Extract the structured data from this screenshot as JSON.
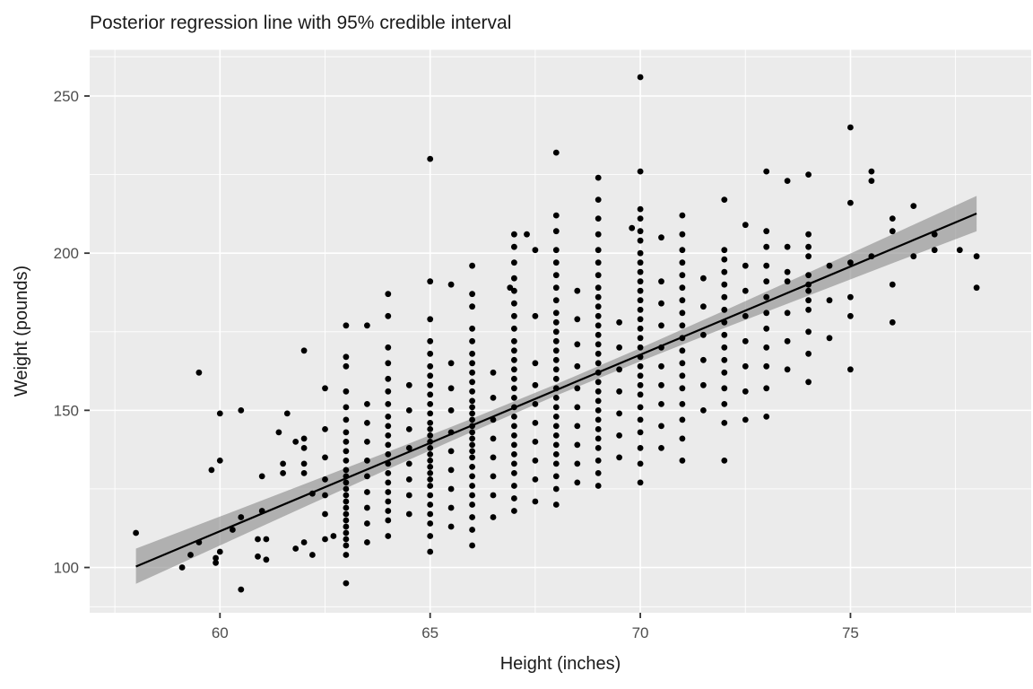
{
  "page": {
    "background": "#FFFFFF"
  },
  "chart_data": {
    "type": "scatter",
    "title": "Posterior regression line with 95% credible interval",
    "xlabel": "Height (inches)",
    "ylabel": "Weight (pounds)",
    "x_ticks": [
      60,
      65,
      70,
      75
    ],
    "y_ticks": [
      100,
      150,
      200,
      250
    ],
    "x_minor_gridlines": [
      57.5,
      62.5,
      67.5,
      72.5,
      77.5
    ],
    "y_minor_gridlines": [
      87.5,
      125,
      175,
      225,
      262.5
    ],
    "xlim": [
      56.9,
      79.3
    ],
    "ylim": [
      85.6,
      264.7
    ],
    "grid": true,
    "legend": "none",
    "colors": {
      "panel_background": "#EBEBEB",
      "gridline": "#FFFFFF",
      "point": "#000000",
      "regression_line": "#000000",
      "ribbon": "#8C8C8C",
      "tick_label": "#4D4D4D",
      "tick_mark": "#333333",
      "title": "#1a1a1a"
    },
    "regression_line": {
      "x": [
        58,
        78
      ],
      "y": [
        100.3,
        212.6
      ]
    },
    "credible_ribbon": [
      [
        58,
        94.8,
        106.0
      ],
      [
        60,
        107.0,
        116.2
      ],
      [
        62,
        119.2,
        126.5
      ],
      [
        64,
        131.3,
        136.8
      ],
      [
        66,
        143.2,
        147.4
      ],
      [
        68,
        154.7,
        158.3
      ],
      [
        70,
        165.6,
        169.8
      ],
      [
        72,
        176.2,
        181.7
      ],
      [
        74,
        186.5,
        193.8
      ],
      [
        76,
        196.8,
        206.0
      ],
      [
        78,
        207.0,
        218.2
      ]
    ],
    "points": [
      [
        58,
        111
      ],
      [
        59.1,
        100
      ],
      [
        59.3,
        104
      ],
      [
        59.5,
        108
      ],
      [
        59.5,
        162
      ],
      [
        59.8,
        131
      ],
      [
        59.9,
        103
      ],
      [
        59.9,
        101.5
      ],
      [
        60,
        105
      ],
      [
        60,
        134
      ],
      [
        60,
        149
      ],
      [
        60.3,
        112
      ],
      [
        60.5,
        93
      ],
      [
        60.5,
        116
      ],
      [
        60.5,
        150
      ],
      [
        60.9,
        109
      ],
      [
        60.9,
        103.5
      ],
      [
        61,
        129
      ],
      [
        61,
        118
      ],
      [
        61.1,
        109
      ],
      [
        61.1,
        102.5
      ],
      [
        61.4,
        143
      ],
      [
        61.5,
        133
      ],
      [
        61.5,
        130
      ],
      [
        61.6,
        149
      ],
      [
        61.8,
        140
      ],
      [
        61.8,
        106
      ],
      [
        62,
        141
      ],
      [
        62,
        138
      ],
      [
        62,
        133
      ],
      [
        62,
        130
      ],
      [
        62,
        108
      ],
      [
        62,
        169
      ],
      [
        62.2,
        123.5
      ],
      [
        62.2,
        104
      ],
      [
        62.5,
        123
      ],
      [
        62.5,
        109
      ],
      [
        62.7,
        110
      ],
      [
        62.5,
        117
      ],
      [
        62.5,
        128
      ],
      [
        62.5,
        135
      ],
      [
        62.5,
        144
      ],
      [
        62.5,
        157
      ],
      [
        63,
        95
      ],
      [
        63,
        104
      ],
      [
        63,
        107
      ],
      [
        63,
        109
      ],
      [
        63,
        111
      ],
      [
        63,
        113
      ],
      [
        63,
        115
      ],
      [
        63,
        117
      ],
      [
        63,
        119
      ],
      [
        63,
        121
      ],
      [
        63,
        123
      ],
      [
        63,
        125
      ],
      [
        63,
        127
      ],
      [
        63,
        129
      ],
      [
        63,
        131
      ],
      [
        63,
        134
      ],
      [
        63,
        137
      ],
      [
        63,
        140
      ],
      [
        63,
        143
      ],
      [
        63,
        147
      ],
      [
        63,
        151
      ],
      [
        63,
        156
      ],
      [
        63,
        164
      ],
      [
        63,
        167
      ],
      [
        63,
        177
      ],
      [
        63.5,
        108
      ],
      [
        63.5,
        114
      ],
      [
        63.5,
        119
      ],
      [
        63.5,
        124
      ],
      [
        63.5,
        129
      ],
      [
        63.5,
        134
      ],
      [
        63.5,
        140
      ],
      [
        63.5,
        146
      ],
      [
        63.5,
        152
      ],
      [
        63.5,
        177
      ],
      [
        64,
        110
      ],
      [
        64,
        115
      ],
      [
        64,
        118
      ],
      [
        64,
        121
      ],
      [
        64,
        124
      ],
      [
        64,
        127
      ],
      [
        64,
        130
      ],
      [
        64,
        133
      ],
      [
        64,
        136
      ],
      [
        64,
        139
      ],
      [
        64,
        142
      ],
      [
        64,
        145
      ],
      [
        64,
        148
      ],
      [
        64,
        152
      ],
      [
        64,
        156
      ],
      [
        64,
        160
      ],
      [
        64,
        165
      ],
      [
        64,
        170
      ],
      [
        64,
        180
      ],
      [
        64,
        187
      ],
      [
        64.5,
        117
      ],
      [
        64.5,
        123
      ],
      [
        64.5,
        128
      ],
      [
        64.5,
        133
      ],
      [
        64.5,
        138
      ],
      [
        64.5,
        144
      ],
      [
        64.5,
        150
      ],
      [
        64.5,
        158
      ],
      [
        65,
        105
      ],
      [
        65,
        110
      ],
      [
        65,
        114
      ],
      [
        65,
        117
      ],
      [
        65,
        120
      ],
      [
        65,
        123
      ],
      [
        65,
        126
      ],
      [
        65,
        128
      ],
      [
        65,
        130
      ],
      [
        65,
        132
      ],
      [
        65,
        134
      ],
      [
        65,
        136
      ],
      [
        65,
        138
      ],
      [
        65,
        140
      ],
      [
        65,
        142
      ],
      [
        65,
        144
      ],
      [
        65,
        146
      ],
      [
        65,
        149
      ],
      [
        65,
        152
      ],
      [
        65,
        155
      ],
      [
        65,
        158
      ],
      [
        65,
        161
      ],
      [
        65,
        164
      ],
      [
        65,
        168
      ],
      [
        65,
        172
      ],
      [
        65,
        179
      ],
      [
        65,
        191
      ],
      [
        65,
        230
      ],
      [
        65.5,
        113
      ],
      [
        65.5,
        119
      ],
      [
        65.5,
        125
      ],
      [
        65.5,
        131
      ],
      [
        65.5,
        137
      ],
      [
        65.5,
        143
      ],
      [
        65.5,
        150
      ],
      [
        65.5,
        157
      ],
      [
        65.5,
        165
      ],
      [
        65.5,
        190
      ],
      [
        66,
        107
      ],
      [
        66,
        112
      ],
      [
        66,
        116
      ],
      [
        66,
        120
      ],
      [
        66,
        123
      ],
      [
        66,
        126
      ],
      [
        66,
        129
      ],
      [
        66,
        132
      ],
      [
        66,
        135
      ],
      [
        66,
        137
      ],
      [
        66,
        139
      ],
      [
        66,
        141
      ],
      [
        66,
        143
      ],
      [
        66,
        145
      ],
      [
        66,
        147
      ],
      [
        66,
        149
      ],
      [
        66,
        151
      ],
      [
        66,
        153
      ],
      [
        66,
        156
      ],
      [
        66,
        159
      ],
      [
        66,
        162
      ],
      [
        66,
        165
      ],
      [
        66,
        168
      ],
      [
        66,
        172
      ],
      [
        66,
        176
      ],
      [
        66,
        183
      ],
      [
        66,
        187
      ],
      [
        66,
        196
      ],
      [
        66.5,
        116
      ],
      [
        66.5,
        123
      ],
      [
        66.5,
        129
      ],
      [
        66.5,
        135
      ],
      [
        66.5,
        141
      ],
      [
        66.5,
        147
      ],
      [
        66.5,
        154
      ],
      [
        66.5,
        162
      ],
      [
        66.9,
        189
      ],
      [
        67,
        118
      ],
      [
        67,
        122
      ],
      [
        67,
        126
      ],
      [
        67,
        130
      ],
      [
        67,
        133
      ],
      [
        67,
        136
      ],
      [
        67,
        139
      ],
      [
        67,
        142
      ],
      [
        67,
        145
      ],
      [
        67,
        148
      ],
      [
        67,
        151
      ],
      [
        67,
        154
      ],
      [
        67,
        157
      ],
      [
        67,
        160
      ],
      [
        67,
        163
      ],
      [
        67,
        166
      ],
      [
        67,
        169
      ],
      [
        67,
        172
      ],
      [
        67,
        176
      ],
      [
        67,
        180
      ],
      [
        67,
        184
      ],
      [
        67,
        188
      ],
      [
        67,
        192
      ],
      [
        67,
        197
      ],
      [
        67,
        202
      ],
      [
        67,
        206
      ],
      [
        67.3,
        206
      ],
      [
        67.5,
        121
      ],
      [
        67.5,
        128
      ],
      [
        67.5,
        134
      ],
      [
        67.5,
        140
      ],
      [
        67.5,
        146
      ],
      [
        67.5,
        152
      ],
      [
        67.5,
        158
      ],
      [
        67.5,
        165
      ],
      [
        67.5,
        180
      ],
      [
        67.5,
        201
      ],
      [
        68,
        120
      ],
      [
        68,
        125
      ],
      [
        68,
        129
      ],
      [
        68,
        133
      ],
      [
        68,
        136
      ],
      [
        68,
        139
      ],
      [
        68,
        142
      ],
      [
        68,
        145
      ],
      [
        68,
        148
      ],
      [
        68,
        151
      ],
      [
        68,
        154
      ],
      [
        68,
        157
      ],
      [
        68,
        160
      ],
      [
        68,
        163
      ],
      [
        68,
        166
      ],
      [
        68,
        169
      ],
      [
        68,
        172
      ],
      [
        68,
        175
      ],
      [
        68,
        178
      ],
      [
        68,
        181
      ],
      [
        68,
        185
      ],
      [
        68,
        189
      ],
      [
        68,
        193
      ],
      [
        68,
        197
      ],
      [
        68,
        201
      ],
      [
        68,
        207
      ],
      [
        68,
        212
      ],
      [
        68,
        232
      ],
      [
        68.5,
        127
      ],
      [
        68.5,
        133
      ],
      [
        68.5,
        139
      ],
      [
        68.5,
        145
      ],
      [
        68.5,
        151
      ],
      [
        68.5,
        157
      ],
      [
        68.5,
        164
      ],
      [
        68.5,
        171
      ],
      [
        68.5,
        179
      ],
      [
        68.5,
        188
      ],
      [
        69,
        126
      ],
      [
        69,
        130
      ],
      [
        69,
        134
      ],
      [
        69,
        138
      ],
      [
        69,
        141
      ],
      [
        69,
        144
      ],
      [
        69,
        147
      ],
      [
        69,
        150
      ],
      [
        69,
        153
      ],
      [
        69,
        156
      ],
      [
        69,
        159
      ],
      [
        69,
        162
      ],
      [
        69,
        165
      ],
      [
        69,
        168
      ],
      [
        69,
        171
      ],
      [
        69,
        174
      ],
      [
        69,
        177
      ],
      [
        69,
        180
      ],
      [
        69,
        183
      ],
      [
        69,
        186
      ],
      [
        69,
        189
      ],
      [
        69,
        193
      ],
      [
        69,
        197
      ],
      [
        69,
        201
      ],
      [
        69,
        206
      ],
      [
        69,
        211
      ],
      [
        69,
        217
      ],
      [
        69,
        224
      ],
      [
        69.5,
        135
      ],
      [
        69.5,
        142
      ],
      [
        69.5,
        149
      ],
      [
        69.5,
        156
      ],
      [
        69.5,
        163
      ],
      [
        69.5,
        170
      ],
      [
        69.5,
        178
      ],
      [
        69.8,
        208
      ],
      [
        70,
        127
      ],
      [
        70,
        133
      ],
      [
        70,
        138
      ],
      [
        70,
        143
      ],
      [
        70,
        147
      ],
      [
        70,
        151
      ],
      [
        70,
        155
      ],
      [
        70,
        158
      ],
      [
        70,
        161
      ],
      [
        70,
        164
      ],
      [
        70,
        167
      ],
      [
        70,
        170
      ],
      [
        70,
        173
      ],
      [
        70,
        176
      ],
      [
        70,
        179
      ],
      [
        70,
        182
      ],
      [
        70,
        185
      ],
      [
        70,
        188
      ],
      [
        70,
        191
      ],
      [
        70,
        194
      ],
      [
        70,
        197
      ],
      [
        70,
        200
      ],
      [
        70,
        204
      ],
      [
        70,
        207
      ],
      [
        70,
        211
      ],
      [
        70,
        214
      ],
      [
        70,
        226
      ],
      [
        70,
        256
      ],
      [
        70.5,
        138
      ],
      [
        70.5,
        145
      ],
      [
        70.5,
        152
      ],
      [
        70.5,
        158
      ],
      [
        70.5,
        164
      ],
      [
        70.5,
        170
      ],
      [
        70.5,
        177
      ],
      [
        70.5,
        184
      ],
      [
        70.5,
        191
      ],
      [
        70.5,
        205
      ],
      [
        71,
        134
      ],
      [
        71,
        141
      ],
      [
        71,
        147
      ],
      [
        71,
        152
      ],
      [
        71,
        157
      ],
      [
        71,
        161
      ],
      [
        71,
        165
      ],
      [
        71,
        169
      ],
      [
        71,
        173
      ],
      [
        71,
        177
      ],
      [
        71,
        181
      ],
      [
        71,
        185
      ],
      [
        71,
        189
      ],
      [
        71,
        193
      ],
      [
        71,
        197
      ],
      [
        71,
        201
      ],
      [
        71,
        206
      ],
      [
        71,
        212
      ],
      [
        71.5,
        150
      ],
      [
        71.5,
        158
      ],
      [
        71.5,
        166
      ],
      [
        71.5,
        174
      ],
      [
        71.5,
        183
      ],
      [
        71.5,
        192
      ],
      [
        72,
        134
      ],
      [
        72,
        146
      ],
      [
        72,
        152
      ],
      [
        72,
        157
      ],
      [
        72,
        162
      ],
      [
        72,
        166
      ],
      [
        72,
        170
      ],
      [
        72,
        174
      ],
      [
        72,
        178
      ],
      [
        72,
        182
      ],
      [
        72,
        186
      ],
      [
        72,
        190
      ],
      [
        72,
        194
      ],
      [
        72,
        198
      ],
      [
        72,
        201
      ],
      [
        72,
        217
      ],
      [
        72.5,
        147
      ],
      [
        72.5,
        156
      ],
      [
        72.5,
        164
      ],
      [
        72.5,
        172
      ],
      [
        72.5,
        180
      ],
      [
        72.5,
        188
      ],
      [
        72.5,
        196
      ],
      [
        72.5,
        209
      ],
      [
        73,
        148
      ],
      [
        73,
        157
      ],
      [
        73,
        164
      ],
      [
        73,
        170
      ],
      [
        73,
        176
      ],
      [
        73,
        181
      ],
      [
        73,
        186
      ],
      [
        73,
        191
      ],
      [
        73,
        196
      ],
      [
        73,
        202
      ],
      [
        73,
        207
      ],
      [
        73,
        226
      ],
      [
        73.5,
        163
      ],
      [
        73.5,
        172
      ],
      [
        73.5,
        181
      ],
      [
        73.5,
        191
      ],
      [
        73.5,
        194
      ],
      [
        73.5,
        202
      ],
      [
        73.5,
        223
      ],
      [
        74,
        159
      ],
      [
        74,
        168
      ],
      [
        74,
        175
      ],
      [
        74,
        182
      ],
      [
        74,
        185
      ],
      [
        74,
        188
      ],
      [
        74,
        190
      ],
      [
        74,
        193
      ],
      [
        74,
        199
      ],
      [
        74,
        202
      ],
      [
        74,
        206
      ],
      [
        74,
        225
      ],
      [
        74.5,
        173
      ],
      [
        74.5,
        185
      ],
      [
        74.5,
        196
      ],
      [
        75,
        163
      ],
      [
        75,
        180
      ],
      [
        75,
        186
      ],
      [
        75,
        197
      ],
      [
        75,
        216
      ],
      [
        75,
        240
      ],
      [
        75.5,
        199
      ],
      [
        75.5,
        223
      ],
      [
        75.5,
        226
      ],
      [
        76,
        178
      ],
      [
        76,
        190
      ],
      [
        76,
        207
      ],
      [
        76,
        211
      ],
      [
        76.5,
        199
      ],
      [
        76.5,
        215
      ],
      [
        77,
        201
      ],
      [
        77,
        206
      ],
      [
        77.6,
        201
      ],
      [
        78,
        189
      ],
      [
        78,
        199
      ]
    ]
  }
}
